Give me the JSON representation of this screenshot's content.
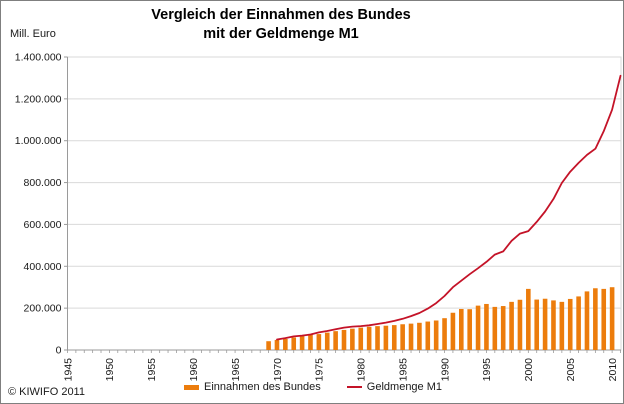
{
  "header": {
    "title_line1": "Vergleich der Einnahmen des Bundes",
    "title_line2": "mit der Geldmenge M1",
    "y_unit_label": "Mill. Euro"
  },
  "legend": {
    "einnahmen_label": "Einnahmen des Bundes",
    "geldmenge_label": "Geldmenge M1"
  },
  "footer": {
    "copyright": "© KIWIFO 2011"
  },
  "colors": {
    "bar_orange": "#EC7C0C",
    "line_red": "#C41328",
    "gridline": "#D9D9D9",
    "axis": "#9a9a9a",
    "text": "#1a1a1a"
  },
  "chart_data": {
    "type": "bar+line",
    "title": "Vergleich der Einnahmen des Bundes mit der Geldmenge M1",
    "ylabel": "Mill. Euro",
    "xlabel": "",
    "ylim": [
      0,
      1400000
    ],
    "ytick_values": [
      0,
      200000,
      400000,
      600000,
      800000,
      1000000,
      1200000,
      1400000
    ],
    "ytick_labels": [
      "0",
      "200.000",
      "400.000",
      "600.000",
      "800.000",
      "1.000.000",
      "1.200.000",
      "1.400.000"
    ],
    "xlim": [
      1945,
      2011
    ],
    "xtick_label_years": [
      1945,
      1950,
      1955,
      1960,
      1965,
      1970,
      1975,
      1980,
      1985,
      1990,
      1995,
      2000,
      2005,
      2010
    ],
    "xtick_labels": [
      "1945",
      "1950",
      "1955",
      "1960",
      "1965",
      "1970",
      "1975",
      "1980",
      "1985",
      "1990",
      "1995",
      "2000",
      "2005",
      "2010"
    ],
    "grid": "horizontal",
    "legend_position": "bottom",
    "series": [
      {
        "name": "Einnahmen des Bundes",
        "type": "bar",
        "color": "#EC7C0C",
        "start_year": 1969,
        "values": [
          42000,
          48000,
          53000,
          60000,
          68000,
          75000,
          76000,
          83000,
          90000,
          96000,
          102000,
          107000,
          111000,
          114000,
          116000,
          119000,
          123000,
          126000,
          130000,
          136000,
          141000,
          152000,
          178000,
          196000,
          195000,
          212000,
          220000,
          206000,
          210000,
          230000,
          240000,
          292000,
          241000,
          245000,
          237000,
          230000,
          244000,
          256000,
          280000,
          295000,
          292000,
          300000
        ]
      },
      {
        "name": "Geldmenge M1",
        "type": "line",
        "color": "#C41328",
        "start_year": 1970,
        "values": [
          50000,
          57000,
          65000,
          69000,
          74000,
          84000,
          91000,
          99000,
          107000,
          112000,
          114000,
          118000,
          124000,
          131000,
          139000,
          149000,
          162000,
          177000,
          198000,
          224000,
          258000,
          300000,
          331000,
          362000,
          391000,
          421000,
          456000,
          471000,
          522000,
          556000,
          568000,
          612000,
          662000,
          722000,
          798000,
          852000,
          894000,
          932000,
          962000,
          1045000,
          1148000,
          1310000
        ]
      }
    ]
  }
}
